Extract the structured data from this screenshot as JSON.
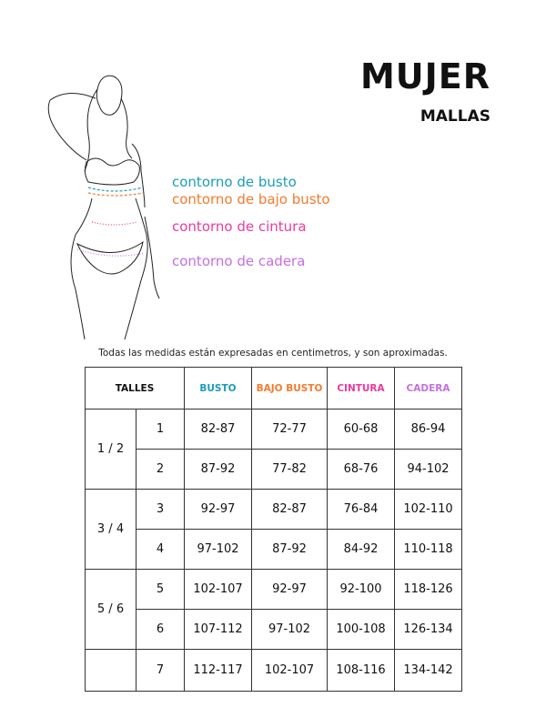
{
  "header": {
    "title": "MUJER",
    "subtitle": "MALLAS"
  },
  "legend": [
    {
      "label": "contorno de busto",
      "color": "#1a9cbc"
    },
    {
      "label": "contorno de bajo busto",
      "color": "#f47b2e"
    },
    {
      "label": "contorno de cintura",
      "color": "#ec3a9d"
    },
    {
      "label": "contorno de cadera",
      "color": "#c56fe0"
    }
  ],
  "note": "Todas las medidas están expresadas en centimetros, y son aproximadas.",
  "table": {
    "headers": [
      "TALLES",
      "BUSTO",
      "BAJO BUSTO",
      "CINTURA",
      "CADERA"
    ],
    "groups": [
      "1 / 2",
      "3 / 4",
      "5 / 6",
      ""
    ],
    "rows": [
      [
        "1",
        "82-87",
        "72-77",
        "60-68",
        "86-94"
      ],
      [
        "2",
        "87-92",
        "77-82",
        "68-76",
        "94-102"
      ],
      [
        "3",
        "92-97",
        "82-87",
        "76-84",
        "102-110"
      ],
      [
        "4",
        "97-102",
        "87-92",
        "84-92",
        "110-118"
      ],
      [
        "5",
        "102-107",
        "92-97",
        "92-100",
        "118-126"
      ],
      [
        "6",
        "107-112",
        "97-102",
        "100-108",
        "126-134"
      ],
      [
        "7",
        "112-117",
        "102-107",
        "108-116",
        "134-142"
      ]
    ]
  }
}
